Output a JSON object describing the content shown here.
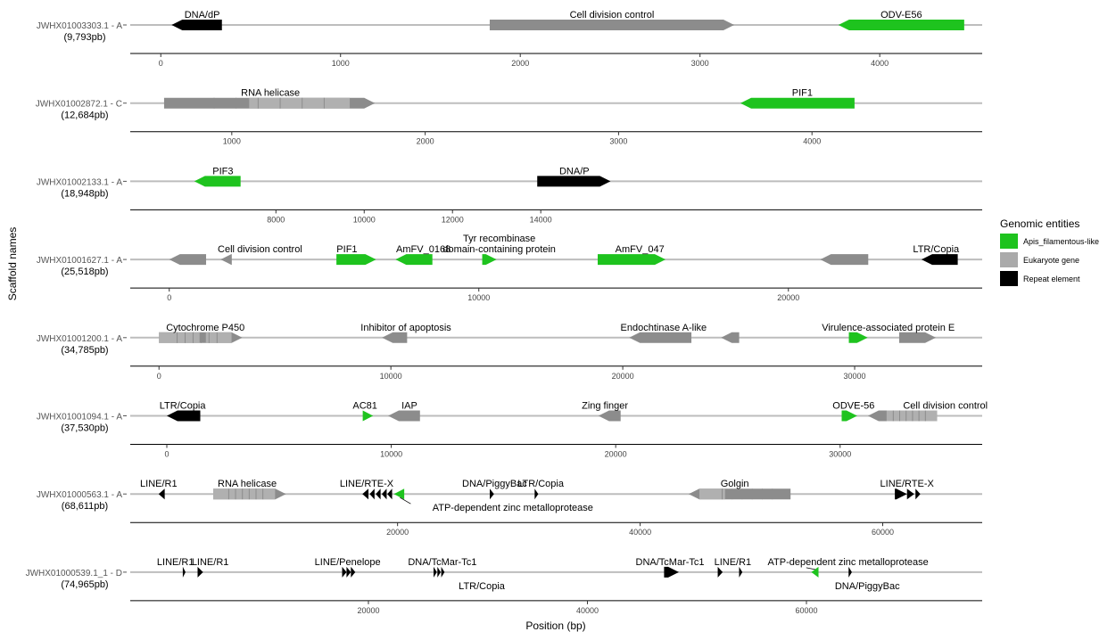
{
  "chart_data": {
    "type": "gene-map",
    "xlabel": "Position (bp)",
    "ylabel": "Scaffold names",
    "legend": {
      "title": "Genomic entities",
      "placement": "right",
      "items": [
        {
          "name": "Apis_filamentous-like",
          "color": "#1ec31e"
        },
        {
          "name": "Eukaryote gene",
          "color": "#aaaaaa"
        },
        {
          "name": "Repeat element",
          "color": "#000000"
        }
      ]
    },
    "colors": {
      "virus": "#1ec31e",
      "euk": "#8c8c8c",
      "euk_light": "#b0b0b0",
      "repeat": "#000000",
      "backbone": "#bdbdbd"
    },
    "scaffolds": [
      {
        "name": "JWHX01003303.1 - A",
        "size": "(9,793pb)",
        "range": [
          -170,
          4570
        ],
        "ticks": [
          0,
          1000,
          2000,
          3000,
          4000
        ],
        "features": [
          {
            "start": 340,
            "end": 60,
            "type": "repeat"
          },
          {
            "start": 1830,
            "end": 3190,
            "type": "euk"
          },
          {
            "start": 4470,
            "end": 3770,
            "type": "virus"
          }
        ],
        "labels": [
          {
            "text": "DNA/dP",
            "x": 230
          },
          {
            "text": "Cell division control",
            "x": 2510
          },
          {
            "text": "ODV-E56",
            "x": 4120
          }
        ]
      },
      {
        "name": "JWHX01002872.1 - C",
        "size": "(12,684pb)",
        "range": [
          475,
          4880
        ],
        "ticks": [
          1000,
          2000,
          3000,
          4000
        ],
        "features": [
          {
            "start": 650,
            "end": 1740,
            "type": "euk",
            "light": [
              [
                1090,
                1610
              ]
            ]
          },
          {
            "start": 4220,
            "end": 3630,
            "type": "virus"
          }
        ],
        "labels": [
          {
            "text": "RNA helicase",
            "x": 1200
          },
          {
            "text": "PIF1",
            "x": 3950
          }
        ]
      },
      {
        "name": "JWHX01002133.1 - A",
        "size": "(18,948pb)",
        "range": [
          4700,
          24000
        ],
        "ticks": [
          8000,
          10000,
          12000,
          14000
        ],
        "features": [
          {
            "start": 7200,
            "end": 6150,
            "type": "virus"
          },
          {
            "start": 13920,
            "end": 15580,
            "type": "repeat"
          }
        ],
        "labels": [
          {
            "text": "PIF3",
            "x": 6800
          },
          {
            "text": "DNA/P",
            "x": 14760
          }
        ]
      },
      {
        "name": "JWHX01001627.1 - A",
        "size": "(25,518pb)",
        "range": [
          -1260,
          26260
        ],
        "ticks": [
          0,
          10000,
          20000
        ],
        "features": [
          {
            "start": 1190,
            "end": 0,
            "type": "euk"
          },
          {
            "start": 2020,
            "end": 1660,
            "type": "euk"
          },
          {
            "start": 5400,
            "end": 6680,
            "type": "virus"
          },
          {
            "start": 8500,
            "end": 7310,
            "type": "virus"
          },
          {
            "start": 10110,
            "end": 10570,
            "type": "virus"
          },
          {
            "start": 13840,
            "end": 16030,
            "type": "virus"
          },
          {
            "start": 22580,
            "end": 21030,
            "type": "euk"
          },
          {
            "start": 25470,
            "end": 24300,
            "type": "repeat"
          }
        ],
        "labels": [
          {
            "text": "Cell division control",
            "x": 2930
          },
          {
            "text": "PIF1",
            "x": 5740
          },
          {
            "text": "AmFV_0168",
            "x": 8210
          },
          {
            "text": "Tyr recombinase",
            "x": 10660,
            "line": 2
          },
          {
            "text": "domain-containing protein",
            "x": 10660
          },
          {
            "text": "AmFV_047",
            "x": 15200
          },
          {
            "text": "LTR/Copia",
            "x": 24770
          }
        ]
      },
      {
        "name": "JWHX01001200.1 - A",
        "size": "(34,785pb)",
        "range": [
          -1240,
          35500
        ],
        "ticks": [
          0,
          10000,
          20000,
          30000
        ],
        "features": [
          {
            "start": 0,
            "end": 3590,
            "type": "euk",
            "light": [
              [
                0,
                1750
              ],
              [
                2020,
                3300
              ]
            ]
          },
          {
            "start": 10700,
            "end": 9620,
            "type": "euk"
          },
          {
            "start": 22960,
            "end": 20280,
            "type": "euk"
          },
          {
            "start": 25020,
            "end": 24240,
            "type": "euk"
          },
          {
            "start": 29750,
            "end": 30560,
            "type": "virus"
          },
          {
            "start": 31920,
            "end": 33500,
            "type": "euk"
          }
        ],
        "labels": [
          {
            "text": "Cytochrome P450",
            "x": 2000
          },
          {
            "text": "Inhibitor of apoptosis",
            "x": 10650
          },
          {
            "text": "Endochtinase A-like",
            "x": 21760
          },
          {
            "text": "Virulence-associated protein E",
            "x": 31450
          }
        ]
      },
      {
        "name": "JWHX01001094.1 - A",
        "size": "(37,530pb)",
        "range": [
          -1630,
          36330
        ],
        "ticks": [
          0,
          10000,
          20000,
          30000
        ],
        "features": [
          {
            "start": 1490,
            "end": 0,
            "type": "repeat"
          },
          {
            "start": 8730,
            "end": 9190,
            "type": "virus"
          },
          {
            "start": 11280,
            "end": 9860,
            "type": "euk"
          },
          {
            "start": 20220,
            "end": 19230,
            "type": "euk"
          },
          {
            "start": 30070,
            "end": 30760,
            "type": "virus"
          },
          {
            "start": 34320,
            "end": 31240,
            "type": "euk",
            "light": [
              [
                32070,
                34320
              ]
            ]
          }
        ],
        "labels": [
          {
            "text": "LTR/Copia",
            "x": 700
          },
          {
            "text": "AC81",
            "x": 8830
          },
          {
            "text": "IAP",
            "x": 10810
          },
          {
            "text": "Zing finger",
            "x": 19520
          },
          {
            "text": "ODVE-56",
            "x": 30600
          },
          {
            "text": "Cell division control",
            "x": 34690
          }
        ]
      },
      {
        "name": "JWHX01000563.1 - A",
        "size": "(68,611pb)",
        "range": [
          -2040,
          68200
        ],
        "ticks": [
          20000,
          40000,
          60000
        ],
        "features": [
          {
            "start": 800,
            "end": 300,
            "type": "repeat"
          },
          {
            "start": 4800,
            "end": 10800,
            "type": "euk",
            "light": [
              [
                4800,
                9900
              ]
            ]
          },
          {
            "start": 17600,
            "end": 17100,
            "type": "repeat"
          },
          {
            "start": 18100,
            "end": 17700,
            "type": "repeat"
          },
          {
            "start": 18600,
            "end": 18200,
            "type": "repeat"
          },
          {
            "start": 19100,
            "end": 18700,
            "type": "repeat"
          },
          {
            "start": 19550,
            "end": 19150,
            "type": "repeat"
          },
          {
            "start": 20550,
            "end": 19700,
            "type": "virus"
          },
          {
            "start": 27600,
            "end": 27950,
            "type": "repeat"
          },
          {
            "start": 31300,
            "end": 31600,
            "type": "repeat"
          },
          {
            "start": 52400,
            "end": 44000,
            "type": "euk",
            "light": [
              [
                44000,
                47000
              ]
            ]
          },
          {
            "start": 61000,
            "end": 62000,
            "type": "repeat"
          },
          {
            "start": 62000,
            "end": 62600,
            "type": "repeat"
          },
          {
            "start": 62700,
            "end": 63100,
            "type": "repeat"
          }
        ],
        "labels": [
          {
            "text": "LINE/R1",
            "x": 300
          },
          {
            "text": "RNA helicase",
            "x": 7600
          },
          {
            "text": "LINE/RTE-X",
            "x": 17450
          },
          {
            "text": "DNA/PiggyBac",
            "x": 28000
          },
          {
            "text": "LTR/Copia",
            "x": 31800
          },
          {
            "text": "Golgin",
            "x": 47800
          },
          {
            "text": "LINE/RTE-X",
            "x": 62000
          },
          {
            "text": "ATP-dependent zinc metalloprotease",
            "x": 29500,
            "below": true,
            "pointer": 20200
          }
        ]
      },
      {
        "name": "JWHX01000539.1_1 - D",
        "size": "(74,965pb)",
        "range": [
          -1750,
          76050
        ],
        "ticks": [
          20000,
          40000,
          60000
        ],
        "features": [
          {
            "start": 3050,
            "end": 3300,
            "type": "repeat"
          },
          {
            "start": 4400,
            "end": 4900,
            "type": "repeat"
          },
          {
            "start": 17600,
            "end": 18000,
            "type": "repeat"
          },
          {
            "start": 18000,
            "end": 18400,
            "type": "repeat"
          },
          {
            "start": 18400,
            "end": 18800,
            "type": "repeat"
          },
          {
            "start": 25950,
            "end": 26250,
            "type": "repeat"
          },
          {
            "start": 26300,
            "end": 26600,
            "type": "repeat"
          },
          {
            "start": 26650,
            "end": 26950,
            "type": "repeat"
          },
          {
            "start": 47000,
            "end": 48350,
            "type": "repeat"
          },
          {
            "start": 51900,
            "end": 52350,
            "type": "repeat"
          },
          {
            "start": 53850,
            "end": 54150,
            "type": "repeat"
          },
          {
            "start": 61100,
            "end": 60450,
            "type": "virus"
          },
          {
            "start": 63850,
            "end": 64150,
            "type": "repeat"
          }
        ],
        "labels": [
          {
            "text": "LINE/R1",
            "x": 2380
          },
          {
            "text": "LINE/R1",
            "x": 5550
          },
          {
            "text": "LINE/Penelope",
            "x": 18100
          },
          {
            "text": "DNA/TcMar-Tc1",
            "x": 26750
          },
          {
            "text": "DNA/TcMar-Tc1",
            "x": 47540
          },
          {
            "text": "LINE/R1",
            "x": 53270
          },
          {
            "text": "ATP-dependent zinc metalloprotease",
            "x": 63800,
            "pointer": 60800
          },
          {
            "text": "LTR/Copia",
            "x": 30350,
            "below": true
          },
          {
            "text": "DNA/PiggyBac",
            "x": 65560,
            "below": true
          }
        ]
      }
    ]
  }
}
